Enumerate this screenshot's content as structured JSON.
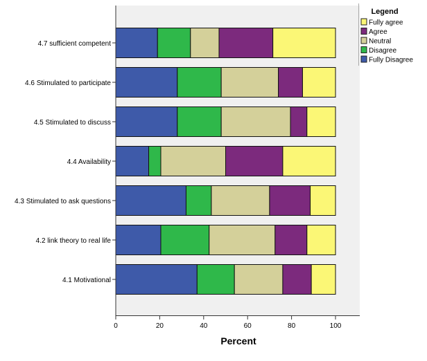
{
  "chart_data": {
    "type": "bar",
    "orientation": "horizontal",
    "stacked": true,
    "title": "",
    "xlabel": "Percent",
    "ylabel": "",
    "xlim": [
      0,
      110
    ],
    "xticks": [
      0,
      20,
      40,
      60,
      80,
      100
    ],
    "categories": [
      "4.7 sufficient competent",
      "4.6 Stimulated to participate",
      "4.5 Stimulated to discuss",
      "4.4 Availability",
      "4.3 Stimulated to ask questions",
      "4.2 link theory to real life",
      "4.1 Motivational"
    ],
    "series": [
      {
        "name": "Fully Disagree",
        "color": "#3e5aa9",
        "values": [
          19.0,
          28.0,
          28.0,
          15.0,
          32.0,
          20.5,
          37.0
        ]
      },
      {
        "name": "Disagree",
        "color": "#2fb84a",
        "values": [
          15.0,
          20.0,
          20.0,
          5.5,
          11.5,
          22.0,
          17.0
        ]
      },
      {
        "name": "Neutral",
        "color": "#d4d09a",
        "values": [
          13.0,
          26.0,
          31.5,
          29.5,
          26.5,
          30.0,
          22.0
        ]
      },
      {
        "name": "Agree",
        "color": "#7c2a7d",
        "values": [
          24.5,
          11.0,
          7.5,
          26.0,
          18.5,
          14.5,
          13.0
        ]
      },
      {
        "name": "Fully agree",
        "color": "#fbf776",
        "values": [
          28.5,
          15.0,
          13.0,
          24.0,
          11.5,
          13.0,
          11.0
        ]
      }
    ],
    "legend": {
      "title": "Legend",
      "placement": "right",
      "order": [
        "Fully agree",
        "Agree",
        "Neutral",
        "Disagree",
        "Fully Disagree"
      ]
    },
    "grid": false
  }
}
